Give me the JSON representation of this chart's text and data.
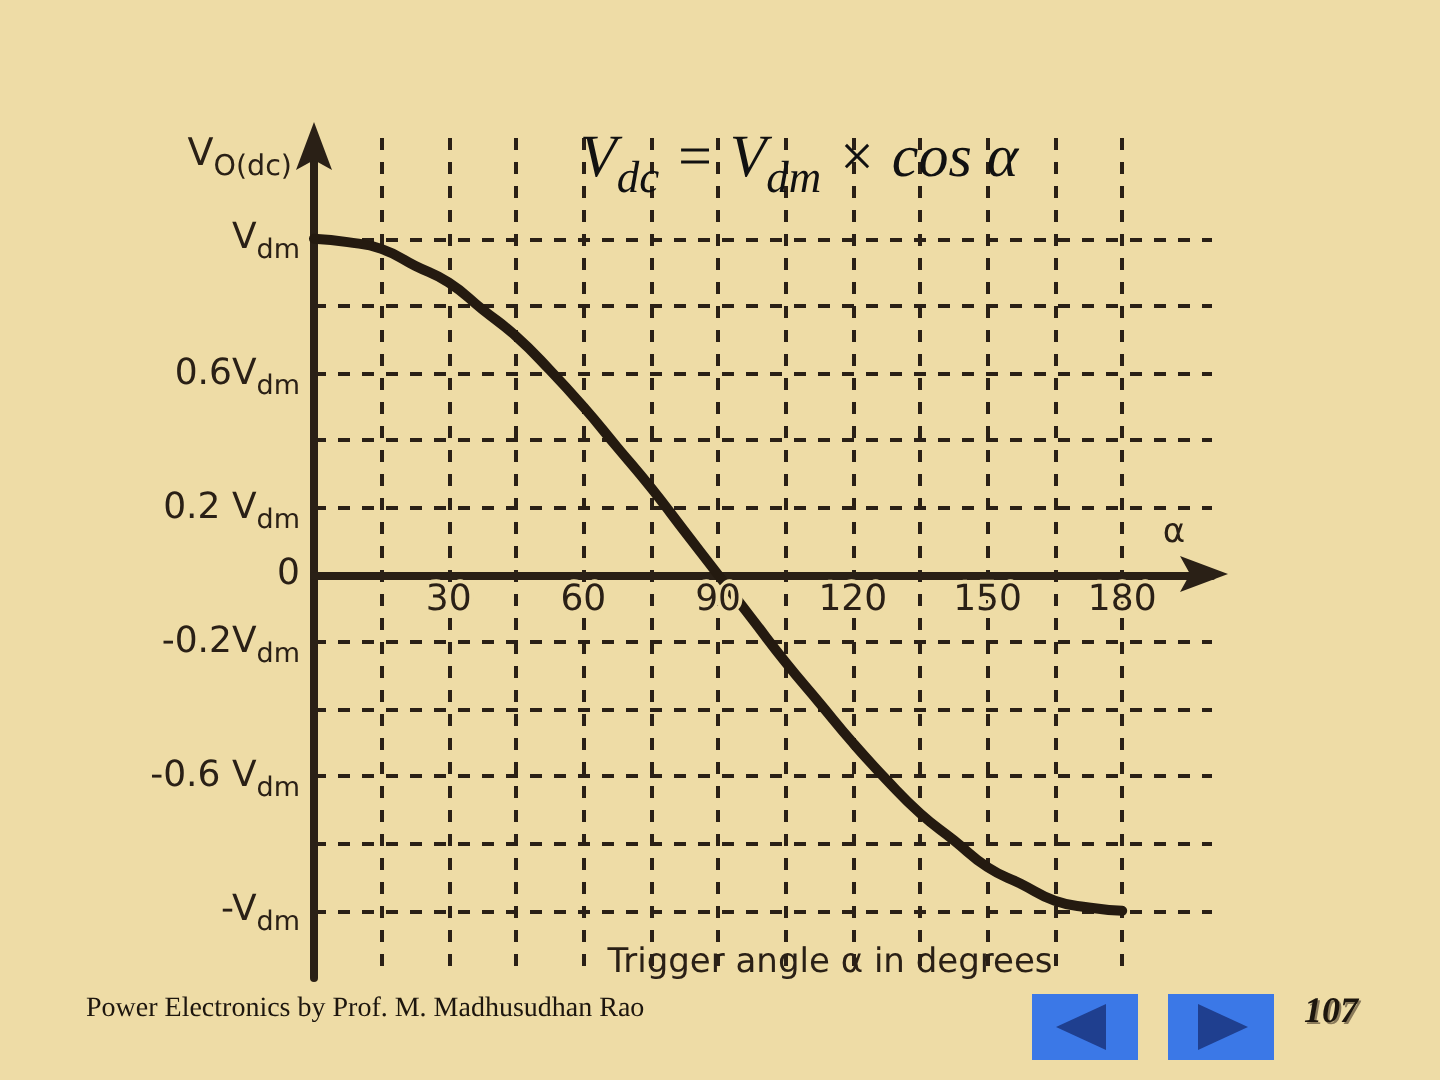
{
  "chart_data": {
    "type": "line",
    "title": "V$_{dc}$ = V$_{dm}$ × cos α",
    "xlabel": "Trigger angle α in degrees",
    "ylabel": "V$_{O(dc)}$",
    "annotations": [
      "α",
      "Power Electronics by Prof. M. Madhusudhan Rao",
      "107"
    ],
    "x": [
      0,
      7.5,
      15,
      22.5,
      30,
      37.5,
      45,
      52.5,
      60,
      67.5,
      75,
      82.5,
      90,
      97.5,
      105,
      112.5,
      120,
      127.5,
      135,
      142.5,
      150,
      157.5,
      165,
      172.5,
      180
    ],
    "values": [
      1.0,
      0.99,
      0.97,
      0.92,
      0.87,
      0.79,
      0.71,
      0.61,
      0.5,
      0.38,
      0.26,
      0.13,
      0,
      -0.13,
      -0.26,
      -0.38,
      -0.5,
      -0.61,
      -0.71,
      -0.79,
      -0.87,
      -0.92,
      -0.97,
      -0.99,
      -1.0
    ],
    "color": "#241a10",
    "marker": "none",
    "line_style": "solid",
    "grid": true,
    "xlim": [
      0,
      200
    ],
    "ylim": [
      -1.2,
      1.3
    ],
    "xticks": [
      {
        "value": 15,
        "label": null
      },
      30,
      {
        "value": 45,
        "label": null
      },
      60,
      {
        "value": 75,
        "label": null
      },
      90,
      {
        "value": 105,
        "label": null
      },
      120,
      {
        "value": 135,
        "label": null
      },
      150,
      {
        "value": 165,
        "label": null
      },
      180
    ],
    "yticks": [
      {
        "value": -1,
        "label": "-V$_{dm}$"
      },
      {
        "value": -0.8,
        "label": null
      },
      {
        "value": -0.6,
        "label": "-0.6 V$_{dm}$"
      },
      {
        "value": -0.4,
        "label": null
      },
      {
        "value": -0.2,
        "label": "-0.2V$_{dm}$"
      },
      0,
      {
        "value": 0.2,
        "label": "0.2 V$_{dm}$"
      },
      {
        "value": 0.4,
        "label": null
      },
      {
        "value": 0.6,
        "label": "0.6V$_{dm}$"
      },
      {
        "value": 0.8,
        "label": null
      },
      {
        "value": 1,
        "label": "V$_{dm}$"
      }
    ]
  }
}
